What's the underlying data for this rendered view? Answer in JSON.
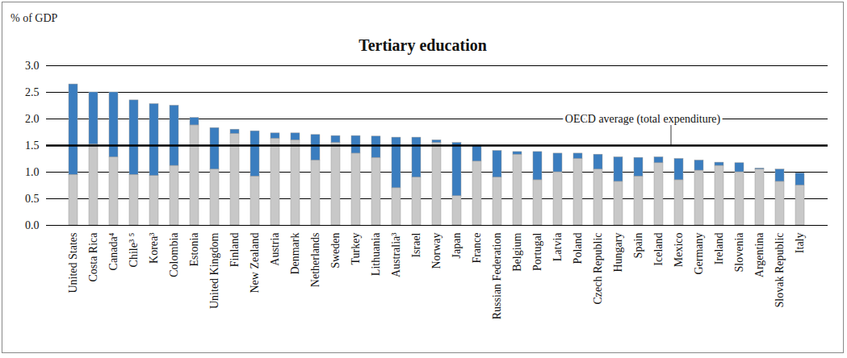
{
  "chart_data": {
    "type": "bar",
    "title": "Tertiary education",
    "ylabel": "% of GDP",
    "stacked": true,
    "grid": true,
    "categories": [
      "United States",
      "Costa Rica",
      "Canada⁴",
      "Chile³ ⁵",
      "Korea³",
      "Colombia",
      "Estonia",
      "United Kingdom",
      "Finland",
      "New Zealand",
      "Austria",
      "Denmark",
      "Netherlands",
      "Sweden",
      "Turkey",
      "Lithuania",
      "Australia³",
      "Israel",
      "Norway",
      "Japan",
      "France",
      "Russian Federation",
      "Belgium",
      "Portugal",
      "Latvia",
      "Poland",
      "Czech Republic",
      "Hungary",
      "Spain",
      "Iceland",
      "Mexico",
      "Germany",
      "Ireland",
      "Slovenia",
      "Argentina",
      "Slovak Republic",
      "Italy"
    ],
    "series": [
      {
        "color": "#c8c8c8",
        "values": [
          0.95,
          1.52,
          1.28,
          0.95,
          0.93,
          1.12,
          1.88,
          1.05,
          1.72,
          0.92,
          1.63,
          1.6,
          1.22,
          1.55,
          1.35,
          1.27,
          0.7,
          0.9,
          1.55,
          0.55,
          1.2,
          0.9,
          1.33,
          0.85,
          1.0,
          1.25,
          1.05,
          0.82,
          0.92,
          1.17,
          0.85,
          1.03,
          1.12,
          1.0,
          1.05,
          0.82,
          0.75
        ]
      },
      {
        "color": "#3a7dbf",
        "values": [
          1.7,
          0.98,
          1.22,
          1.4,
          1.35,
          1.13,
          0.14,
          0.78,
          0.08,
          0.85,
          0.1,
          0.13,
          0.48,
          0.13,
          0.33,
          0.4,
          0.95,
          0.75,
          0.05,
          1.0,
          0.3,
          0.5,
          0.05,
          0.53,
          0.35,
          0.1,
          0.28,
          0.46,
          0.35,
          0.11,
          0.4,
          0.19,
          0.06,
          0.17,
          0.02,
          0.23,
          0.23
        ]
      }
    ],
    "ylim": [
      0,
      3
    ],
    "yticks": [
      {
        "value": 0,
        "label": "0.0"
      },
      0.5,
      {
        "value": 1,
        "label": "1.0"
      },
      1.5,
      {
        "value": 2,
        "label": "2.0"
      },
      2.5,
      {
        "value": 3,
        "label": "3.0"
      }
    ],
    "annotations": [
      {
        "text": "OECD average (total expenditure)",
        "y": 1.5
      }
    ]
  }
}
